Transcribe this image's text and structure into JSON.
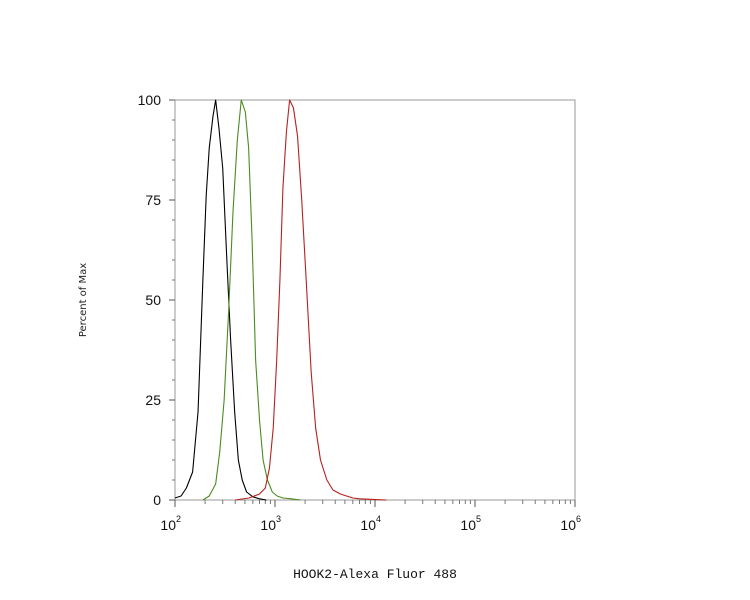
{
  "chart_data": {
    "type": "line",
    "xlabel": "HOOK2-Alexa Fluor 488",
    "ylabel": "Percent of Max",
    "xscale": "log",
    "xlim": [
      100,
      1000000
    ],
    "ylim": [
      0,
      100
    ],
    "y_ticks": [
      {
        "value": 0,
        "label": "0"
      },
      {
        "value": 25,
        "label": "25"
      },
      {
        "value": 50,
        "label": "50"
      },
      {
        "value": 75,
        "label": "75"
      },
      {
        "value": 100,
        "label": "100"
      }
    ],
    "x_ticks": [
      {
        "value": 100,
        "base": "10",
        "exp": "2"
      },
      {
        "value": 1000,
        "base": "10",
        "exp": "3"
      },
      {
        "value": 10000,
        "base": "10",
        "exp": "4"
      },
      {
        "value": 100000,
        "base": "10",
        "exp": "5"
      },
      {
        "value": 1000000,
        "base": "10",
        "exp": "6"
      }
    ],
    "grid": false,
    "legend": "none",
    "series": [
      {
        "color": "#000000",
        "points": [
          [
            100,
            0.5
          ],
          [
            115,
            1
          ],
          [
            130,
            3
          ],
          [
            150,
            7
          ],
          [
            170,
            22
          ],
          [
            190,
            55
          ],
          [
            205,
            76
          ],
          [
            220,
            88
          ],
          [
            240,
            96
          ],
          [
            255,
            100
          ],
          [
            275,
            93
          ],
          [
            300,
            83
          ],
          [
            330,
            60
          ],
          [
            360,
            40
          ],
          [
            395,
            22
          ],
          [
            430,
            10
          ],
          [
            470,
            5
          ],
          [
            520,
            2
          ],
          [
            600,
            0.8
          ],
          [
            700,
            0.3
          ],
          [
            820,
            0
          ]
        ]
      },
      {
        "color": "#4b8a1f",
        "points": [
          [
            190,
            0
          ],
          [
            220,
            1
          ],
          [
            255,
            4
          ],
          [
            280,
            12
          ],
          [
            310,
            25
          ],
          [
            345,
            48
          ],
          [
            380,
            72
          ],
          [
            420,
            90
          ],
          [
            460,
            100
          ],
          [
            505,
            97
          ],
          [
            545,
            88
          ],
          [
            590,
            65
          ],
          [
            640,
            35
          ],
          [
            700,
            20
          ],
          [
            760,
            10
          ],
          [
            840,
            5
          ],
          [
            940,
            2
          ],
          [
            1050,
            1
          ],
          [
            1200,
            0.5
          ],
          [
            1450,
            0.3
          ],
          [
            1800,
            0
          ]
        ]
      },
      {
        "color": "#b81f1f",
        "points": [
          [
            400,
            0
          ],
          [
            550,
            0.5
          ],
          [
            700,
            1.5
          ],
          [
            800,
            3
          ],
          [
            880,
            8
          ],
          [
            960,
            18
          ],
          [
            1040,
            35
          ],
          [
            1120,
            55
          ],
          [
            1200,
            78
          ],
          [
            1300,
            92
          ],
          [
            1400,
            100
          ],
          [
            1530,
            98
          ],
          [
            1680,
            91
          ],
          [
            1850,
            75
          ],
          [
            2050,
            55
          ],
          [
            2300,
            32
          ],
          [
            2550,
            18
          ],
          [
            2850,
            10
          ],
          [
            3300,
            5
          ],
          [
            3800,
            2.5
          ],
          [
            4500,
            1.5
          ],
          [
            5200,
            1
          ],
          [
            6000,
            0.5
          ],
          [
            7000,
            0.3
          ],
          [
            8500,
            0.2
          ],
          [
            10000,
            0.1
          ],
          [
            13000,
            0
          ]
        ]
      }
    ]
  }
}
